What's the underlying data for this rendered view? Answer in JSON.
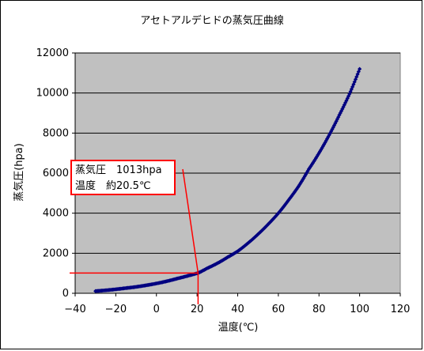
{
  "chart_data": {
    "type": "scatter",
    "title": "アセトアルデヒドの蒸気圧曲線",
    "xlabel": "温度(℃)",
    "ylabel": "蒸気圧(hpa)",
    "xlim": [
      -40,
      120
    ],
    "ylim": [
      0,
      12000
    ],
    "xticks": [
      -40,
      -20,
      0,
      20,
      40,
      60,
      80,
      100,
      120
    ],
    "yticks": [
      0,
      2000,
      4000,
      6000,
      8000,
      10000,
      12000
    ],
    "xtick_labels": [
      "−40",
      "−20",
      "0",
      "20",
      "40",
      "60",
      "80",
      "100",
      "120"
    ],
    "ytick_labels": [
      "0",
      "2000",
      "4000",
      "6000",
      "8000",
      "10000",
      "12000"
    ],
    "grid": "horizontal",
    "plot_background": "#c0c0c0",
    "marker_color": "#000080",
    "line_color": "#ff0000",
    "series": [
      {
        "x": [
          -30,
          -25,
          -20,
          -15,
          -10,
          -5,
          0,
          5,
          10,
          15,
          20,
          20.5,
          25,
          30,
          35,
          40,
          45,
          50,
          55,
          60,
          65,
          70,
          75,
          80,
          85,
          90,
          95,
          100
        ],
        "y": [
          110,
          150,
          200,
          260,
          320,
          400,
          490,
          600,
          730,
          860,
          1000,
          1013,
          1250,
          1500,
          1800,
          2100,
          2500,
          2950,
          3450,
          4000,
          4650,
          5350,
          6200,
          7000,
          7900,
          8900,
          9950,
          11200
        ]
      }
    ],
    "annotation": {
      "line1": "蒸気圧　1013hpa",
      "line2": "温度　約20.5℃",
      "point_x": 20.5,
      "point_y": 1013
    }
  }
}
